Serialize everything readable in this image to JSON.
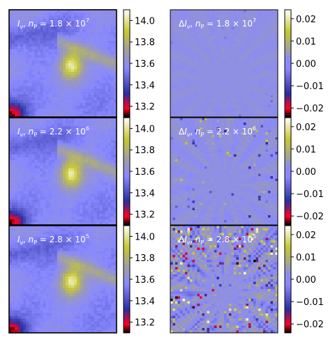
{
  "panels": [
    {
      "row": 0,
      "intensity_label": "I_ν,  n_P = 1.8 × 10^7",
      "difference_label": "ΔI_ν,  n_P = 1.8 × 10^7",
      "intensity_label_parts": {
        "main": "I",
        "sub": "ν",
        "sep": ",  ",
        "var": "n",
        "var_sub": "P",
        "eq": " = 1.8 × 10",
        "exp": "7"
      },
      "difference_label_parts": {
        "pre": "Δ",
        "main": "I",
        "sub": "ν",
        "sep": ",  ",
        "var": "n",
        "var_sub": "P",
        "eq": " = 1.8 × 10",
        "exp": "7"
      },
      "noise_level": 0.0015
    },
    {
      "row": 1,
      "intensity_label": "I_ν,  n_P = 2.2 × 10^6",
      "difference_label": "ΔI_ν,  n_P = 2.2 × 10^6",
      "intensity_label_parts": {
        "main": "I",
        "sub": "ν",
        "sep": ",  ",
        "var": "n",
        "var_sub": "P",
        "eq": " = 2.2 × 10",
        "exp": "6"
      },
      "difference_label_parts": {
        "pre": "Δ",
        "main": "I",
        "sub": "ν",
        "sep": ",  ",
        "var": "n",
        "var_sub": "P",
        "eq": " = 2.2 × 10",
        "exp": "6"
      },
      "noise_level": 0.004
    },
    {
      "row": 2,
      "intensity_label": "I_ν,  n_P = 2.8 × 10^5",
      "difference_label": "ΔI_ν,  n_P = 2.8 × 10^5",
      "intensity_label_parts": {
        "main": "I",
        "sub": "ν",
        "sep": ",  ",
        "var": "n",
        "var_sub": "P",
        "eq": " = 2.8 × 10",
        "exp": "5"
      },
      "difference_label_parts": {
        "pre": "Δ",
        "main": "I",
        "sub": "ν",
        "sep": ",  ",
        "var": "n",
        "var_sub": "P",
        "eq": " = 2.8 × 10",
        "exp": "5"
      },
      "noise_level": 0.012
    }
  ],
  "intensity_colorbar": {
    "ticks": [
      "14.0",
      "13.8",
      "13.6",
      "13.4",
      "13.2"
    ],
    "tick_values": [
      14.0,
      13.8,
      13.6,
      13.4,
      13.2
    ],
    "range": [
      13.1,
      14.1
    ]
  },
  "difference_colorbar": {
    "ticks": [
      "0.02",
      "0.01",
      "0.00",
      "−0.01",
      "−0.02"
    ],
    "tick_values": [
      0.02,
      0.01,
      0.0,
      -0.01,
      -0.02
    ],
    "range": [
      -0.024,
      0.024
    ]
  },
  "colors": {
    "colormap": [
      "#000000",
      "#ff0022",
      "#2a2ea0",
      "#8888ff",
      "#a0a0a0",
      "#c8c832",
      "#ffffff"
    ],
    "label_text": "#ffffff",
    "tick_text": "#000000"
  }
}
